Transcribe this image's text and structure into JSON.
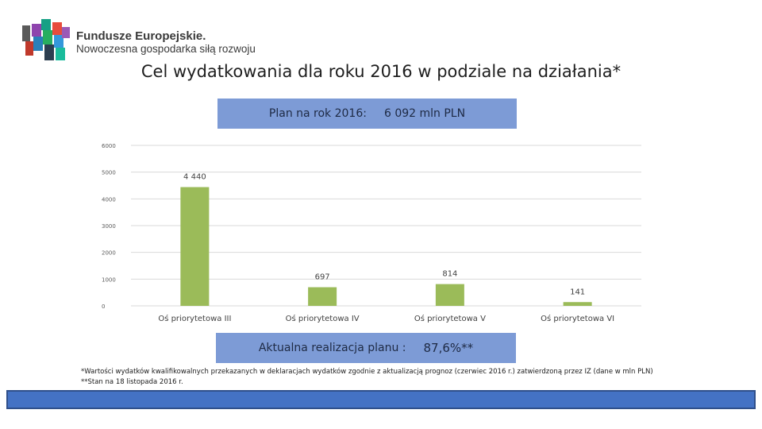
{
  "header": {
    "logo_line1": "Fundusze Europejskie.",
    "logo_line2": "Nowoczesna gospodarka siłą rozwoju"
  },
  "title": "Cel wydatkowania dla roku 2016 w podziale na działania*",
  "plan": {
    "label": "Plan na rok 2016:",
    "value": "6 092 mln PLN"
  },
  "realization": {
    "label": "Aktualna realizacja planu :",
    "value": "87,6%**"
  },
  "footnotes": {
    "line1": "*Wartości wydatków kwalifikowalnych przekazanych w deklaracjach wydatków zgodnie z aktualizacją prognoz (czerwiec 2016 r.) zatwierdzoną przez IZ (dane w mln PLN)",
    "line2": "**Stan na 18 listopada 2016 r."
  },
  "colors": {
    "bar": "#9bbb59",
    "box": "#7d9bd6",
    "bottom_bar": "#4472c4"
  },
  "chart_data": {
    "type": "bar",
    "categories": [
      "Oś priorytetowa III",
      "Oś priorytetowa IV",
      "Oś priorytetowa V",
      "Oś priorytetowa VI"
    ],
    "values": [
      4440,
      697,
      814,
      141
    ],
    "data_labels": [
      "4 440",
      "697",
      "814",
      "141"
    ],
    "y_ticks": [
      "0",
      "1000",
      "2000",
      "3000",
      "4000",
      "5000",
      "6000"
    ],
    "ylim": [
      0,
      6000
    ],
    "grid": true
  }
}
